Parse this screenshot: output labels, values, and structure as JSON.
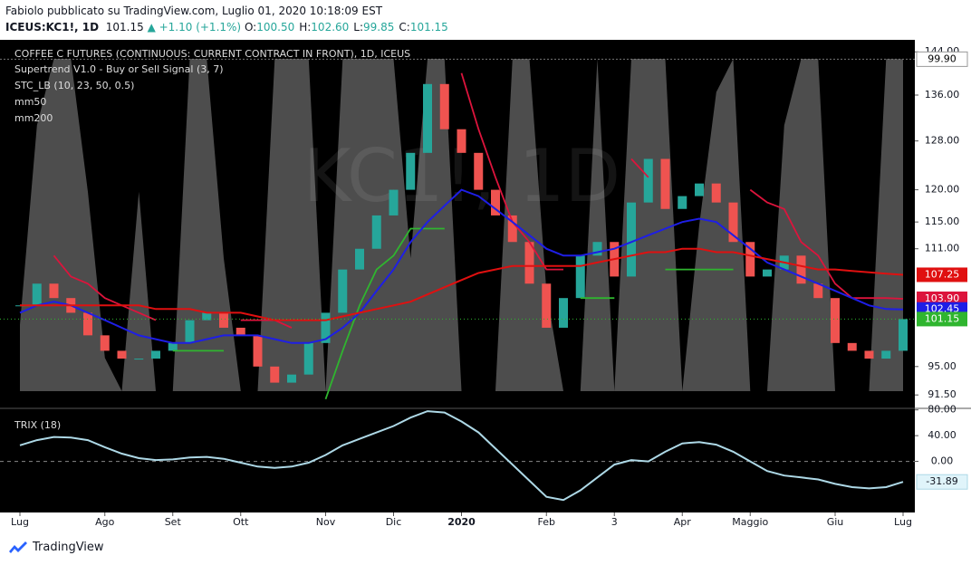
{
  "header": {
    "line1": "Fabiolo pubblicato su TradingView.com, Luglio 01, 2020 10:18:09 EST",
    "symbol": "ICEUS:KC1!, 1D",
    "last": "101.15",
    "change": "▲ +1.10 (+1.1%)",
    "ohlc": [
      {
        "key": "O:",
        "value": "100.50"
      },
      {
        "key": "H:",
        "value": "102.60"
      },
      {
        "key": "L:",
        "value": "99.85"
      },
      {
        "key": "C:",
        "value": "101.15"
      }
    ]
  },
  "footer": {
    "brand": "TradingView"
  },
  "chart_data": [
    {
      "type": "candlestick",
      "title": "COFFEE C FUTURES (CONTINUOUS: CURRENT CONTRACT IN FRONT), 1D, ICEUS",
      "watermark": "KC1!, 1D",
      "log_scale": true,
      "categories": [
        "Lug",
        null,
        null,
        null,
        null,
        "Ago",
        null,
        null,
        null,
        "Set",
        null,
        null,
        null,
        "Ott",
        null,
        null,
        null,
        null,
        "Nov",
        null,
        null,
        null,
        "Dic",
        null,
        null,
        null,
        "2020",
        null,
        null,
        null,
        null,
        "Feb",
        null,
        null,
        null,
        "3",
        null,
        null,
        null,
        "Apr",
        null,
        null,
        null,
        "Maggio",
        null,
        null,
        null,
        null,
        "Giu",
        null,
        null,
        null,
        "Lug"
      ],
      "values": [
        103,
        106,
        104,
        102,
        99,
        97,
        96,
        96,
        97,
        98,
        101,
        102,
        100,
        99,
        95,
        93,
        94,
        98,
        102,
        108,
        111,
        116,
        120,
        126,
        138,
        130,
        126,
        120,
        116,
        112,
        106,
        100,
        104,
        110,
        112,
        107,
        118,
        125,
        117,
        119,
        121,
        118,
        112,
        107,
        108,
        110,
        106,
        104,
        98,
        97,
        96,
        97,
        101.15
      ],
      "up_color": "#26a69a",
      "down_color": "#ef5350",
      "ylim": [
        90,
        146.3
      ],
      "yticks": [
        {
          "value": 91.5,
          "label": "91.50"
        },
        {
          "value": 95,
          "label": "95.00"
        },
        {
          "value": 111,
          "label": "111.00"
        },
        {
          "value": 115,
          "label": "115.00"
        },
        {
          "value": 120,
          "label": "120.00"
        },
        {
          "value": 128,
          "label": "128.00"
        },
        {
          "value": 136,
          "label": "136.00"
        },
        {
          "value": 144,
          "label": "144.00"
        }
      ],
      "supertrend": {
        "name": "Supertrend V1.0 - Buy or Sell Signal (3, 7)",
        "up_color": "#2fb52f",
        "down_color": "#dc143c",
        "up": [
          103,
          103,
          null,
          null,
          null,
          null,
          null,
          null,
          null,
          97,
          97,
          97,
          97,
          null,
          null,
          null,
          null,
          null,
          91,
          97,
          103,
          108,
          110,
          114,
          114,
          114,
          null,
          null,
          null,
          null,
          null,
          null,
          null,
          104,
          104,
          104,
          null,
          null,
          108,
          108,
          108,
          108,
          108,
          null,
          null,
          null,
          null,
          null,
          null,
          null,
          null,
          null,
          null
        ],
        "down": [
          null,
          null,
          110,
          107,
          106,
          104,
          103,
          102,
          101,
          null,
          null,
          null,
          null,
          101,
          101,
          101,
          100,
          null,
          null,
          null,
          null,
          null,
          null,
          null,
          null,
          null,
          140,
          130,
          122,
          115,
          112,
          108,
          108,
          null,
          null,
          null,
          125,
          122,
          null,
          null,
          null,
          null,
          null,
          120,
          118,
          117,
          112,
          110,
          106,
          104,
          104,
          104,
          103.9
        ]
      },
      "stc": {
        "name": "STC_LB (10, 23, 50, 0.5)",
        "color": "#5a5a5a",
        "ylim": [
          0,
          100
        ],
        "values": [
          20,
          80,
          100,
          100,
          60,
          10,
          0,
          60,
          0,
          0,
          100,
          100,
          40,
          0,
          0,
          100,
          100,
          100,
          0,
          100,
          100,
          100,
          100,
          40,
          100,
          100,
          0,
          0,
          0,
          100,
          100,
          30,
          0,
          0,
          100,
          0,
          100,
          100,
          100,
          0,
          50,
          90,
          100,
          0,
          0,
          80,
          100,
          100,
          0,
          0,
          0,
          100,
          99.9
        ],
        "tag": {
          "value": 99.9,
          "label": "99.90"
        }
      },
      "series": [
        {
          "name": "mm50",
          "color": "#1e1ee6",
          "values": [
            102,
            103,
            103.5,
            103,
            102,
            101,
            100,
            99,
            98.5,
            98,
            98,
            98.5,
            99,
            99,
            99,
            98.5,
            98,
            98,
            98.5,
            100,
            102,
            105,
            108,
            112,
            115,
            117.5,
            120,
            119,
            117,
            115,
            113,
            111,
            110,
            110,
            110.5,
            111,
            112,
            113,
            114,
            115,
            115.5,
            115,
            113,
            111,
            109,
            108,
            107,
            106,
            105,
            104,
            103,
            102.5,
            102.45
          ]
        },
        {
          "name": "mm200",
          "color": "#e01010",
          "values": [
            103,
            103,
            103,
            103,
            103,
            103,
            103,
            103,
            102.5,
            102.5,
            102.5,
            102,
            102,
            102,
            101.5,
            101,
            101,
            101,
            101,
            101.5,
            102,
            102.5,
            103,
            103.5,
            104.5,
            105.5,
            106.5,
            107.5,
            108,
            108.5,
            108.5,
            108.5,
            108.5,
            108.5,
            109,
            109.5,
            110,
            110.5,
            110.5,
            111,
            111,
            110.5,
            110.5,
            110,
            109.5,
            109,
            108.5,
            108,
            108,
            107.8,
            107.6,
            107.4,
            107.25
          ]
        }
      ],
      "price_tags": [
        {
          "value": 107.25,
          "label": "107.25",
          "color": "#e01010"
        },
        {
          "value": 103.9,
          "label": "103.90",
          "color": "#dc143c"
        },
        {
          "value": 102.45,
          "label": "102.45",
          "color": "#1e1ee6"
        },
        {
          "value": 101.15,
          "label": "101.15",
          "color": "#2fb52f"
        }
      ]
    },
    {
      "type": "line",
      "title": "TRIX (18)",
      "color": "#add8e6",
      "ylim": [
        -78,
        81
      ],
      "yticks": [
        {
          "value": 80,
          "label": "80.00"
        },
        {
          "value": 40,
          "label": "40.00"
        },
        {
          "value": 0,
          "label": "0.00"
        }
      ],
      "values": [
        25,
        33,
        38,
        37,
        33,
        22,
        12,
        5,
        2,
        3,
        6,
        7,
        4,
        -2,
        -8,
        -10,
        -8,
        -2,
        10,
        25,
        35,
        45,
        55,
        68,
        78,
        76,
        62,
        45,
        20,
        -5,
        -30,
        -55,
        -60,
        -45,
        -25,
        -5,
        2,
        0,
        15,
        28,
        30,
        26,
        15,
        0,
        -15,
        -22,
        -25,
        -28,
        -35,
        -40,
        -42,
        -40,
        -31.89
      ]
    }
  ]
}
